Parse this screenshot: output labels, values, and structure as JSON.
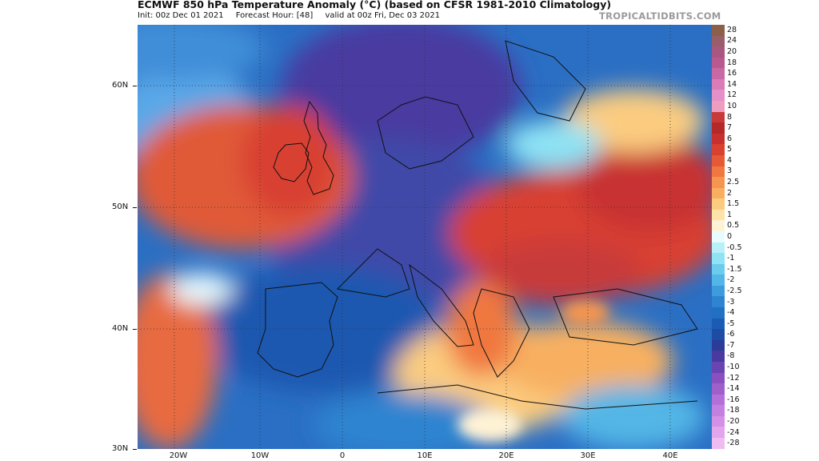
{
  "header": {
    "title": "ECMWF 850 hPa Temperature Anomaly (°C) (based on CFSR 1981-2010 Climatology)",
    "init": "Init: 00z Dec 01 2021",
    "forecast_hour": "Forecast Hour: [48]",
    "valid": "valid at 00z Fri, Dec 03 2021",
    "brand": "TROPICALTIDBITS.COM"
  },
  "axes": {
    "lat_labels": [
      "60N",
      "50N",
      "40N",
      "30N"
    ],
    "lon_labels": [
      "20W",
      "10W",
      "0",
      "10E",
      "20E",
      "30E",
      "40E"
    ]
  },
  "colorbar": {
    "labels": [
      "28",
      "24",
      "20",
      "18",
      "16",
      "14",
      "12",
      "10",
      "8",
      "7",
      "6",
      "5",
      "4",
      "3",
      "2.5",
      "2",
      "1.5",
      "1",
      "0.5",
      "0",
      "-0.5",
      "-1",
      "-1.5",
      "-2",
      "-2.5",
      "-3",
      "-4",
      "-5",
      "-6",
      "-7",
      "-8",
      "-10",
      "-12",
      "-14",
      "-16",
      "-18",
      "-20",
      "-24",
      "-28"
    ],
    "colors": [
      "#8c6048",
      "#9a5d6a",
      "#a8587e",
      "#b85a90",
      "#c868a4",
      "#d97cb8",
      "#e590c6",
      "#ee9cc0",
      "#c83a3a",
      "#b52828",
      "#c83030",
      "#d84030",
      "#e55a35",
      "#f07840",
      "#f59550",
      "#f8b060",
      "#fbcc80",
      "#fde3a8",
      "#fff3d6",
      "#e8fbff",
      "#b8f0fa",
      "#8ee3f4",
      "#6cccee",
      "#52b6e6",
      "#3e9cdc",
      "#2e84d0",
      "#2270c4",
      "#1a5cb4",
      "#1e4ca4",
      "#2a3c98",
      "#4a3aa0",
      "#6a44b0",
      "#8a50c0",
      "#a060cc",
      "#b470d8",
      "#c480e0",
      "#d490e6",
      "#e2a4ea",
      "#eebcf0"
    ]
  }
}
